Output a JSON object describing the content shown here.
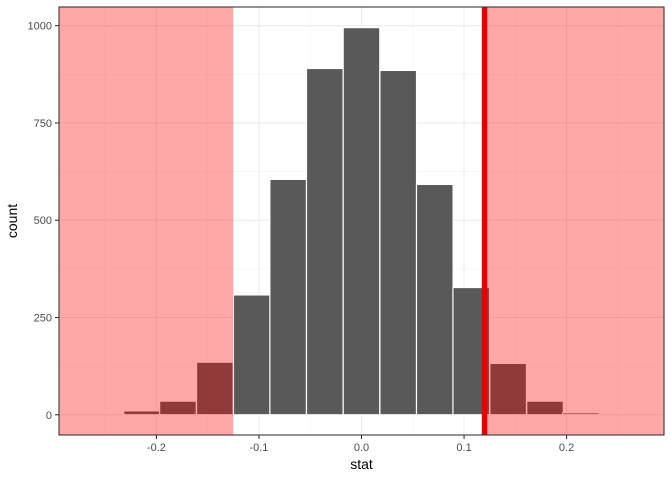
{
  "chart_data": {
    "type": "bar",
    "xlabel": "stat",
    "ylabel": "count",
    "xlim": [
      -0.295,
      0.295
    ],
    "ylim": [
      -52,
      1048
    ],
    "x_ticks": [
      -0.2,
      -0.1,
      0.0,
      0.1,
      0.2
    ],
    "x_tick_labels": [
      "-0.2",
      "-0.1",
      "0.0",
      "0.1",
      "0.2"
    ],
    "y_ticks": [
      0,
      250,
      500,
      750,
      1000
    ],
    "y_tick_labels": [
      "0",
      "250",
      "500",
      "750",
      "1000"
    ],
    "bin_width": 0.0357,
    "bins": [
      {
        "center": -0.214,
        "count": 10
      },
      {
        "center": -0.179,
        "count": 35
      },
      {
        "center": -0.143,
        "count": 135
      },
      {
        "center": -0.107,
        "count": 308
      },
      {
        "center": -0.0715,
        "count": 605
      },
      {
        "center": -0.0358,
        "count": 890
      },
      {
        "center": 0.0,
        "count": 995
      },
      {
        "center": 0.0358,
        "count": 885
      },
      {
        "center": 0.0715,
        "count": 592
      },
      {
        "center": 0.107,
        "count": 327
      },
      {
        "center": 0.143,
        "count": 132
      },
      {
        "center": 0.179,
        "count": 35
      },
      {
        "center": 0.214,
        "count": 5
      }
    ],
    "observed_stat": 0.12,
    "shaded_regions": [
      {
        "from": -0.295,
        "to": -0.125
      },
      {
        "from": 0.12,
        "to": 0.295
      }
    ],
    "grid": true,
    "legend": "none",
    "colors": {
      "bar_fill": "#595959",
      "bar_outline": "#ffffff",
      "shade": "#ff0000",
      "observed_line": "#e60000",
      "panel_border": "#333333"
    }
  }
}
